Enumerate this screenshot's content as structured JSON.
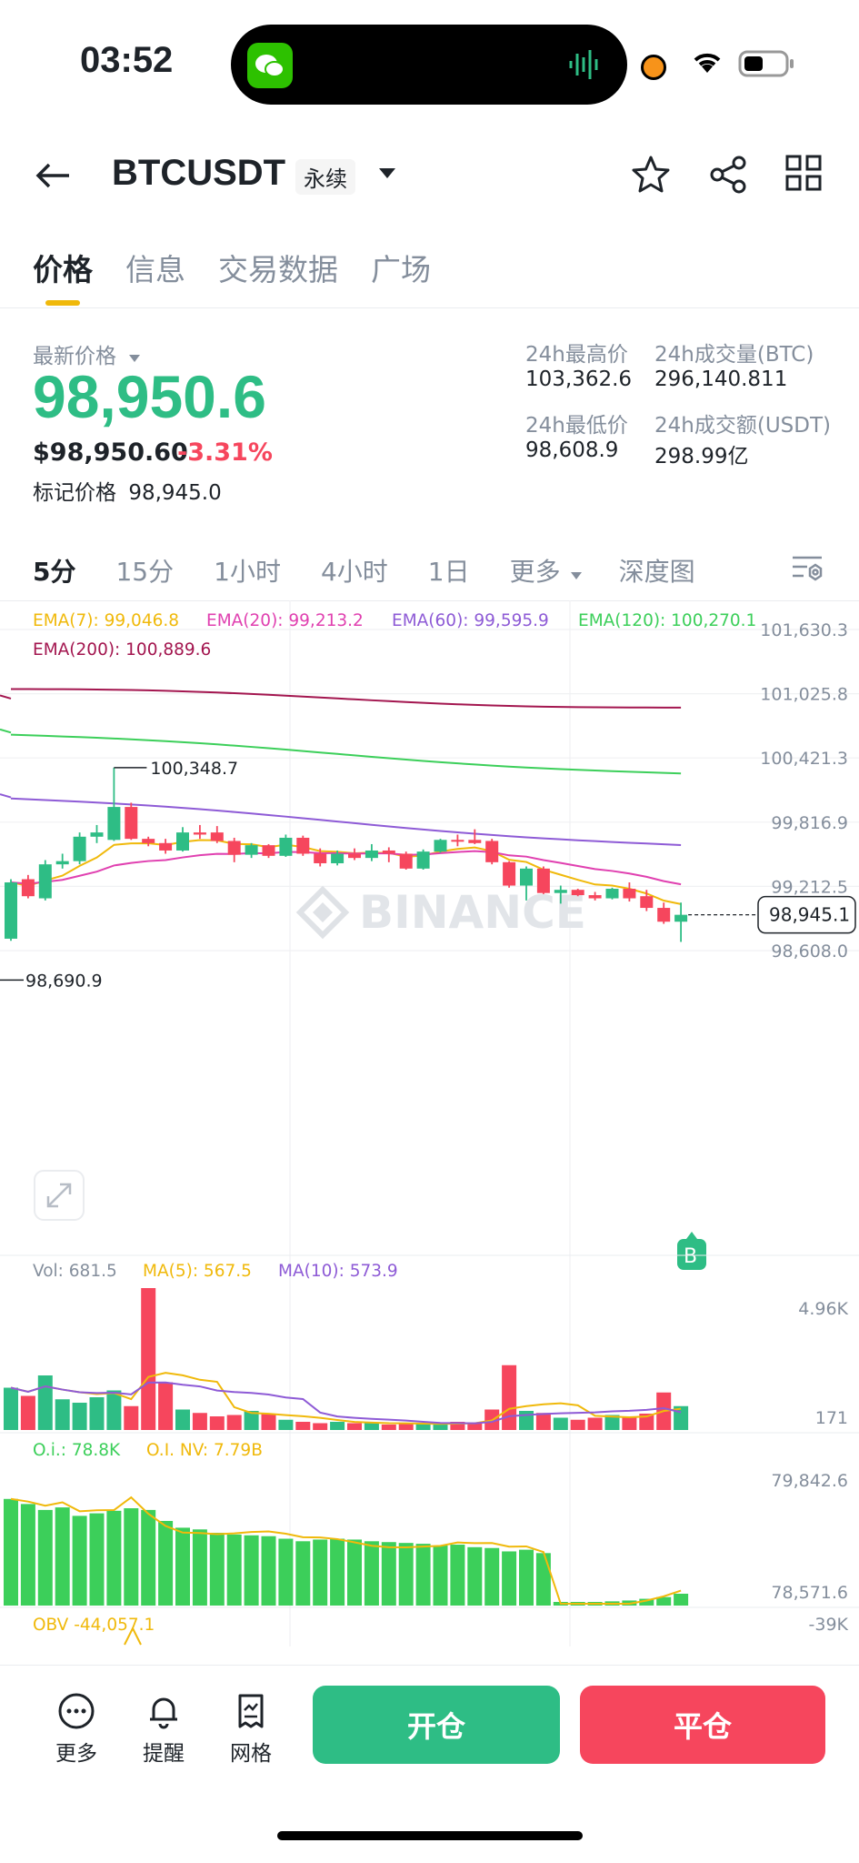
{
  "status": {
    "time": "03:52"
  },
  "header": {
    "symbol": "BTCUSDT",
    "badge": "永续",
    "icons": [
      "back-arrow-icon",
      "caret-down-icon",
      "star-icon",
      "share-icon",
      "grid-icon"
    ]
  },
  "tabs": [
    "价格",
    "信息",
    "交易数据",
    "广场"
  ],
  "price": {
    "label": "最新价格",
    "last": "98,950.6",
    "usd": "$98,950.60",
    "change": "-3.31%",
    "mark_label": "标记价格",
    "mark": "98,945.0",
    "high_label": "24h最高价",
    "high": "103,362.6",
    "low_label": "24h最低价",
    "low": "98,608.9",
    "vol_btc_label": "24h成交量(BTC)",
    "vol_btc": "296,140.811",
    "vol_usdt_label": "24h成交额(USDT)",
    "vol_usdt": "298.99亿"
  },
  "timeframes": [
    "5分",
    "15分",
    "1小时",
    "4小时",
    "1日",
    "更多",
    "深度图"
  ],
  "indicators": {
    "ema7": "EMA(7): 99,046.8",
    "ema20": "EMA(20): 99,213.2",
    "ema60": "EMA(60): 99,595.9",
    "ema120": "EMA(120): 100,270.1",
    "ema200": "EMA(200): 100,889.6",
    "vol": "Vol: 681.5",
    "ma5": "MA(5): 567.5",
    "ma10": "MA(10): 573.9",
    "oi": "O.i.: 78.8K",
    "oinv": "O.I. NV: 7.79B",
    "obv": "OBV -44,057.1"
  },
  "colors": {
    "up": "#2ebd85",
    "down": "#f6465d",
    "ema7": "#f0b90b",
    "ema20": "#e040b0",
    "ema60": "#8e5bd6",
    "ema120": "#3ccf5a",
    "ema200": "#a3164f"
  },
  "chart_data": {
    "type": "candlestick",
    "y_axis_labels": [
      "101,630.3",
      "101,025.8",
      "100,421.3",
      "99,816.9",
      "99,212.5",
      "98,608.0"
    ],
    "ylim": [
      98608.0,
      101630.3
    ],
    "high_marker": "100,348.7",
    "low_marker": "98,690.9",
    "current_price": "98,945.1",
    "watermark": "BINANCE",
    "candles": [
      {
        "o": 98720,
        "h": 99280,
        "l": 98700,
        "c": 99250
      },
      {
        "o": 99280,
        "h": 99320,
        "l": 99100,
        "c": 99120
      },
      {
        "o": 99100,
        "h": 99460,
        "l": 99080,
        "c": 99420
      },
      {
        "o": 99420,
        "h": 99520,
        "l": 99380,
        "c": 99450
      },
      {
        "o": 99450,
        "h": 99720,
        "l": 99420,
        "c": 99680
      },
      {
        "o": 99680,
        "h": 99790,
        "l": 99620,
        "c": 99720
      },
      {
        "o": 99650,
        "h": 100330,
        "l": 99640,
        "c": 99960
      },
      {
        "o": 99960,
        "h": 100000,
        "l": 99650,
        "c": 99660
      },
      {
        "o": 99660,
        "h": 99680,
        "l": 99590,
        "c": 99620
      },
      {
        "o": 99620,
        "h": 99660,
        "l": 99520,
        "c": 99550
      },
      {
        "o": 99550,
        "h": 99770,
        "l": 99540,
        "c": 99720
      },
      {
        "o": 99720,
        "h": 99790,
        "l": 99660,
        "c": 99700
      },
      {
        "o": 99720,
        "h": 99780,
        "l": 99620,
        "c": 99640
      },
      {
        "o": 99640,
        "h": 99670,
        "l": 99440,
        "c": 99510
      },
      {
        "o": 99510,
        "h": 99620,
        "l": 99480,
        "c": 99600
      },
      {
        "o": 99600,
        "h": 99610,
        "l": 99480,
        "c": 99500
      },
      {
        "o": 99500,
        "h": 99700,
        "l": 99490,
        "c": 99670
      },
      {
        "o": 99670,
        "h": 99690,
        "l": 99500,
        "c": 99520
      },
      {
        "o": 99520,
        "h": 99570,
        "l": 99400,
        "c": 99430
      },
      {
        "o": 99430,
        "h": 99550,
        "l": 99410,
        "c": 99520
      },
      {
        "o": 99520,
        "h": 99570,
        "l": 99460,
        "c": 99480
      },
      {
        "o": 99480,
        "h": 99610,
        "l": 99450,
        "c": 99550
      },
      {
        "o": 99550,
        "h": 99580,
        "l": 99440,
        "c": 99520
      },
      {
        "o": 99520,
        "h": 99540,
        "l": 99370,
        "c": 99380
      },
      {
        "o": 99380,
        "h": 99560,
        "l": 99370,
        "c": 99540
      },
      {
        "o": 99540,
        "h": 99660,
        "l": 99530,
        "c": 99650
      },
      {
        "o": 99650,
        "h": 99700,
        "l": 99590,
        "c": 99640
      },
      {
        "o": 99650,
        "h": 99750,
        "l": 99610,
        "c": 99620
      },
      {
        "o": 99640,
        "h": 99660,
        "l": 99420,
        "c": 99440
      },
      {
        "o": 99440,
        "h": 99450,
        "l": 99200,
        "c": 99220
      },
      {
        "o": 99220,
        "h": 99400,
        "l": 99080,
        "c": 99380
      },
      {
        "o": 99380,
        "h": 99400,
        "l": 99140,
        "c": 99150
      },
      {
        "o": 99150,
        "h": 99220,
        "l": 99050,
        "c": 99180
      },
      {
        "o": 99180,
        "h": 99190,
        "l": 99120,
        "c": 99130
      },
      {
        "o": 99130,
        "h": 99160,
        "l": 99080,
        "c": 99100
      },
      {
        "o": 99100,
        "h": 99200,
        "l": 99090,
        "c": 99190
      },
      {
        "o": 99190,
        "h": 99250,
        "l": 99070,
        "c": 99100
      },
      {
        "o": 99120,
        "h": 99180,
        "l": 98980,
        "c": 99010
      },
      {
        "o": 99010,
        "h": 99060,
        "l": 98860,
        "c": 98880
      },
      {
        "o": 98880,
        "h": 99060,
        "l": 98690,
        "c": 98945
      }
    ],
    "volume_axis": [
      "4.96K",
      "171"
    ],
    "volume": [
      0.62,
      0.5,
      0.8,
      0.45,
      0.4,
      0.48,
      0.58,
      0.35,
      2.08,
      0.7,
      0.3,
      0.25,
      0.2,
      0.22,
      0.28,
      0.24,
      0.15,
      0.12,
      0.1,
      0.12,
      0.1,
      0.1,
      0.08,
      0.09,
      0.1,
      0.08,
      0.12,
      0.1,
      0.3,
      0.95,
      0.28,
      0.25,
      0.18,
      0.15,
      0.18,
      0.22,
      0.2,
      0.24,
      0.55,
      0.35
    ],
    "oi_axis": [
      "79,842.6",
      "78,571.6"
    ],
    "oi": [
      79820,
      79760,
      79690,
      79720,
      79620,
      79650,
      79680,
      79710,
      79690,
      79560,
      79480,
      79460,
      79420,
      79400,
      79390,
      79380,
      79350,
      79320,
      79340,
      79350,
      79340,
      79320,
      79310,
      79300,
      79290,
      79270,
      79280,
      79250,
      79240,
      79200,
      79220,
      79180,
      78600,
      78580,
      78600,
      78610,
      78620,
      78640,
      78660,
      78700
    ],
    "obv_axis": "-39K"
  },
  "bottom_bar": {
    "more": "更多",
    "alert": "提醒",
    "grid": "网格",
    "open": "开仓",
    "close": "平仓"
  }
}
